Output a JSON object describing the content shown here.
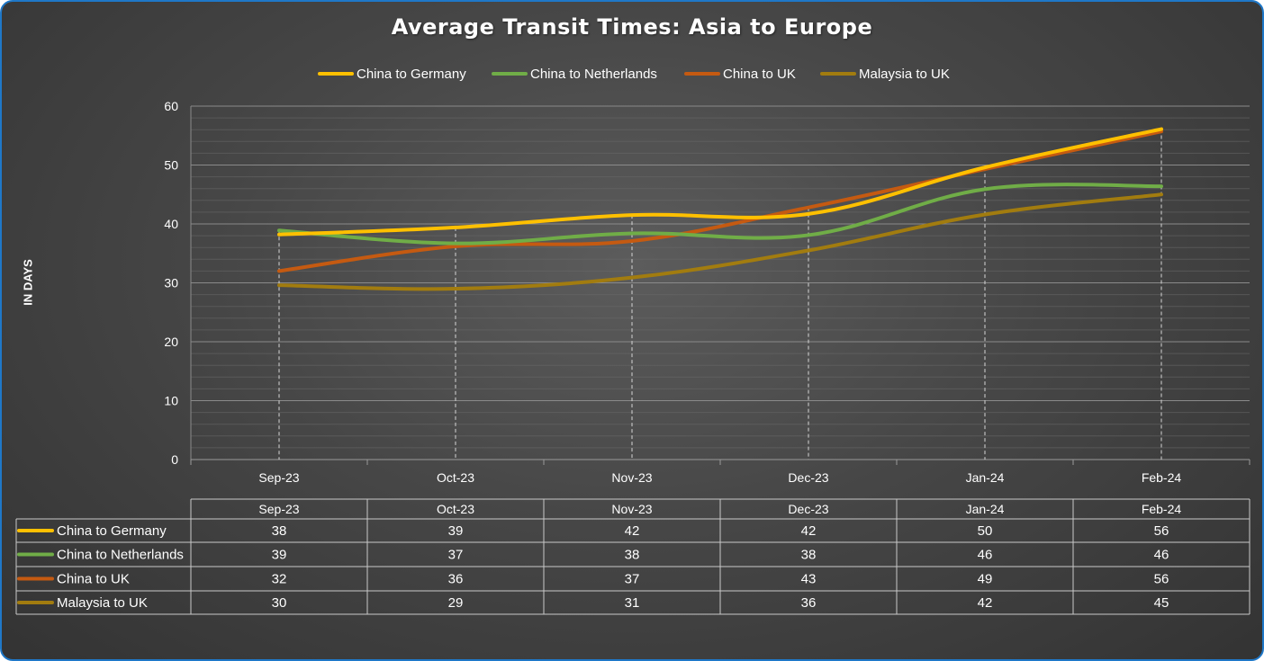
{
  "chart_data": {
    "type": "line",
    "title": "Average Transit Times: Asia to Europe",
    "xlabel": "",
    "ylabel": "IN DAYS",
    "ylim": [
      0,
      60
    ],
    "yticks": [
      "0",
      "10",
      "20",
      "30",
      "40",
      "50",
      "60"
    ],
    "grid": true,
    "legend": "top",
    "categories": [
      "Sep-23",
      "Oct-23",
      "Nov-23",
      "Dec-23",
      "Jan-24",
      "Feb-24"
    ],
    "series": [
      {
        "name": "China to Germany",
        "color": "#ffc000",
        "values": [
          38,
          39,
          42,
          42,
          50,
          56
        ],
        "plot": [
          38.2,
          39.4,
          41.5,
          41.7,
          49.6,
          56.1
        ]
      },
      {
        "name": "China to Netherlands",
        "color": "#70ad47",
        "values": [
          39,
          37,
          38,
          38,
          46,
          46
        ],
        "plot": [
          38.9,
          36.7,
          38.4,
          38.1,
          45.9,
          46.4
        ]
      },
      {
        "name": "China to UK",
        "color": "#c55a11",
        "values": [
          32,
          36,
          37,
          43,
          49,
          56
        ],
        "plot": [
          32.0,
          36.2,
          37.1,
          42.8,
          49.3,
          55.7
        ]
      },
      {
        "name": "Malaysia to UK",
        "color": "#a27c0f",
        "values": [
          30,
          29,
          31,
          36,
          42,
          45
        ],
        "plot": [
          29.6,
          29.0,
          30.9,
          35.5,
          41.6,
          45.0
        ]
      }
    ],
    "table": {
      "header": [
        "Sep-23",
        "Oct-23",
        "Nov-23",
        "Dec-23",
        "Jan-24",
        "Feb-24"
      ]
    }
  }
}
